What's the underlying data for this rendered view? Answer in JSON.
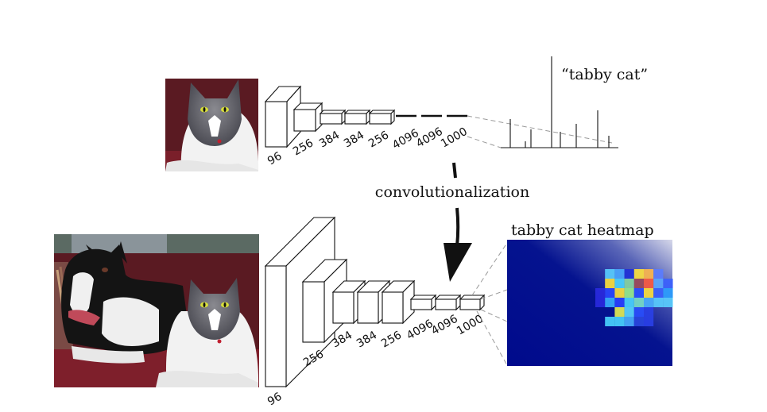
{
  "top_row": {
    "layer_labels": [
      "96",
      "256",
      "384",
      "384",
      "256",
      "4096",
      "4096",
      "1000"
    ],
    "output_label": "“tabby cat”"
  },
  "transition": {
    "label": "convolutionalization"
  },
  "bottom_row": {
    "layer_labels": [
      "96",
      "256",
      "384",
      "384",
      "256",
      "4096",
      "4096",
      "1000"
    ],
    "heatmap_title": "tabby cat heatmap"
  },
  "colors": {
    "heatmap_low": "#000a8c",
    "heatmap_hot": "#ff5a3c",
    "line": "#111111",
    "dashed": "#9a9a9a"
  }
}
